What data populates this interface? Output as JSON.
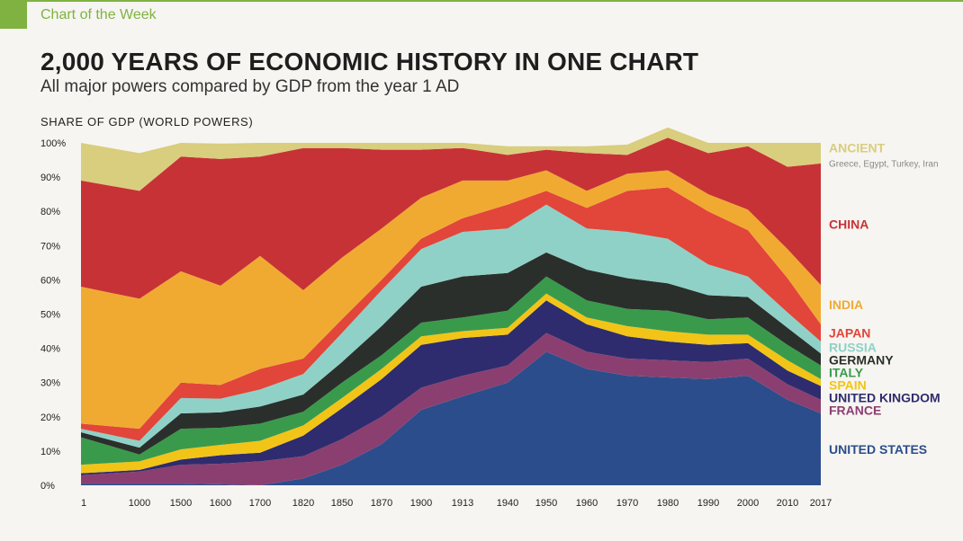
{
  "header": {
    "kicker": "Chart of the Week",
    "title": "2,000 YEARS OF ECONOMIC HISTORY IN ONE CHART",
    "subtitle": "All major powers compared by GDP from the year 1 AD"
  },
  "colors": {
    "accent": "#7fb241"
  },
  "chart_data": {
    "type": "area",
    "stacked": true,
    "ylabel": "SHARE OF GDP (WORLD POWERS)",
    "ylim": [
      0,
      100
    ],
    "y_ticks": [
      "0%",
      "10%",
      "20%",
      "30%",
      "40%",
      "50%",
      "60%",
      "70%",
      "80%",
      "90%",
      "100%"
    ],
    "x": [
      1,
      1000,
      1500,
      1600,
      1700,
      1820,
      1850,
      1870,
      1900,
      1913,
      1940,
      1950,
      1960,
      1970,
      1980,
      1990,
      2000,
      2010,
      2017
    ],
    "x_labels": [
      "1",
      "1000",
      "1500",
      "1600",
      "1700",
      "1820",
      "1850",
      "1870",
      "1900",
      "1913",
      "1940",
      "1950",
      "1960",
      "1970",
      "1980",
      "1990",
      "2000",
      "2010",
      "2017"
    ],
    "grid": false,
    "legend": "right",
    "series": [
      {
        "name": "UNITED STATES",
        "color": "#2b4d8c",
        "values": [
          0.5,
          0.5,
          0.5,
          0.3,
          0,
          2,
          6,
          12,
          22,
          26,
          30,
          39,
          34,
          32,
          31.5,
          31,
          32,
          25,
          21
        ]
      },
      {
        "name": "FRANCE",
        "color": "#8b3f70",
        "values": [
          2.5,
          3.5,
          5.5,
          6,
          7,
          6.5,
          7.5,
          8,
          6.5,
          6,
          5,
          5.5,
          5,
          5,
          5,
          5,
          5,
          4.5,
          4
        ]
      },
      {
        "name": "UNITED KINGDOM",
        "color": "#2e2c6e",
        "values": [
          0.5,
          0.5,
          1.5,
          2.5,
          2.5,
          6,
          9,
          11,
          12.5,
          11,
          9,
          9.5,
          8,
          6.5,
          5.5,
          5,
          4.5,
          4,
          4
        ]
      },
      {
        "name": "SPAIN",
        "color": "#f2c418",
        "values": [
          2.5,
          2.5,
          3,
          3,
          3.5,
          3,
          3,
          3,
          2.5,
          2,
          2,
          2,
          2,
          3,
          3,
          3,
          2.5,
          3,
          2
        ]
      },
      {
        "name": "ITALY",
        "color": "#3a9a4c",
        "values": [
          8,
          2,
          6,
          5,
          5,
          4,
          4.5,
          4,
          4,
          4,
          5,
          5,
          5,
          5,
          6,
          4.5,
          5,
          4.5,
          4
        ]
      },
      {
        "name": "GERMANY",
        "color": "#2b2f2b",
        "values": [
          1.5,
          2,
          4.5,
          4.5,
          5,
          5,
          6,
          8.5,
          10.5,
          12,
          11,
          7,
          9,
          9,
          8,
          7,
          6,
          5,
          3.5
        ]
      },
      {
        "name": "RUSSIA",
        "color": "#8fd1c7",
        "values": [
          1,
          2,
          4.5,
          4,
          5,
          6,
          8.5,
          10.5,
          11,
          13,
          13,
          14,
          12,
          13.5,
          13,
          9,
          6,
          4.5,
          3.5
        ]
      },
      {
        "name": "JAPAN",
        "color": "#e2453a",
        "values": [
          1.5,
          3.5,
          4.5,
          4,
          6,
          4.5,
          4,
          3,
          3,
          4,
          7,
          4,
          6,
          12,
          15,
          15.5,
          13.5,
          10,
          5
        ]
      },
      {
        "name": "INDIA",
        "color": "#f0aa32",
        "values": [
          40,
          38,
          32.5,
          29,
          33,
          20,
          18,
          15,
          12,
          11,
          7,
          6,
          5,
          5,
          5,
          5,
          6,
          8.5,
          11.5
        ]
      },
      {
        "name": "CHINA",
        "color": "#c73236",
        "values": [
          31,
          31.5,
          33.5,
          37,
          29,
          41.5,
          32,
          23,
          14,
          9.5,
          7.5,
          6,
          11,
          5.5,
          9.5,
          12,
          18.5,
          24,
          35.5
        ]
      },
      {
        "name": "ANCIENT",
        "note": "Greece, Egypt, Turkey, Iran",
        "color": "#d9cd7e",
        "values": [
          11,
          11,
          4,
          4.5,
          4,
          1.5,
          1.5,
          2,
          2,
          1.5,
          2.5,
          1,
          2,
          3,
          3,
          3,
          1,
          7,
          6
        ]
      }
    ]
  }
}
